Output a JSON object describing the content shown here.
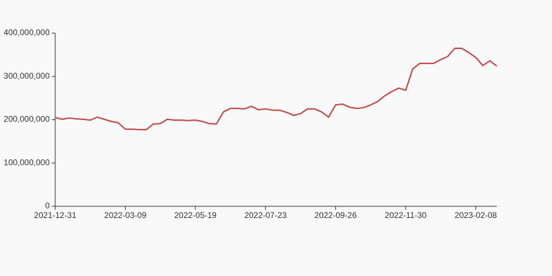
{
  "chart_data": {
    "type": "line",
    "categories": [
      "2021-12-31",
      null,
      null,
      null,
      null,
      null,
      null,
      null,
      null,
      null,
      "2022-03-09",
      null,
      null,
      null,
      null,
      null,
      null,
      null,
      null,
      null,
      "2022-05-19",
      null,
      null,
      null,
      null,
      null,
      null,
      null,
      null,
      null,
      "2022-07-23",
      null,
      null,
      null,
      null,
      null,
      null,
      null,
      null,
      null,
      "2022-09-26",
      null,
      null,
      null,
      null,
      null,
      null,
      null,
      null,
      null,
      "2022-11-30",
      null,
      null,
      null,
      null,
      null,
      null,
      null,
      null,
      null,
      "2023-02-08",
      null,
      null,
      null
    ],
    "series": [
      {
        "color": "#c1484a",
        "values": [
          205000000,
          201000000,
          204000000,
          202000000,
          201000000,
          199000000,
          206000000,
          201000000,
          196000000,
          193000000,
          178000000,
          178000000,
          177000000,
          177000000,
          190000000,
          191000000,
          201000000,
          199000000,
          199000000,
          198000000,
          199000000,
          196000000,
          191000000,
          190000000,
          218000000,
          226000000,
          226000000,
          225000000,
          231000000,
          223000000,
          225000000,
          222000000,
          222000000,
          217000000,
          210000000,
          214000000,
          225000000,
          225000000,
          218000000,
          206000000,
          234000000,
          236000000,
          229000000,
          226000000,
          228000000,
          234000000,
          242000000,
          255000000,
          265000000,
          273000000,
          268000000,
          317000000,
          330000000,
          330000000,
          330000000,
          339000000,
          346000000,
          365000000,
          365000000,
          355000000,
          344000000,
          325000000,
          336000000,
          324000000
        ]
      }
    ],
    "ylim": [
      0,
      400000000
    ],
    "yticks": [
      0,
      {
        "value": 100000000,
        "label": "100,000,000"
      },
      {
        "value": 200000000,
        "label": "200,000,000"
      },
      {
        "value": 300000000,
        "label": "300,000,000"
      },
      {
        "value": 400000000,
        "label": "400,000,000"
      }
    ],
    "grid": false
  }
}
